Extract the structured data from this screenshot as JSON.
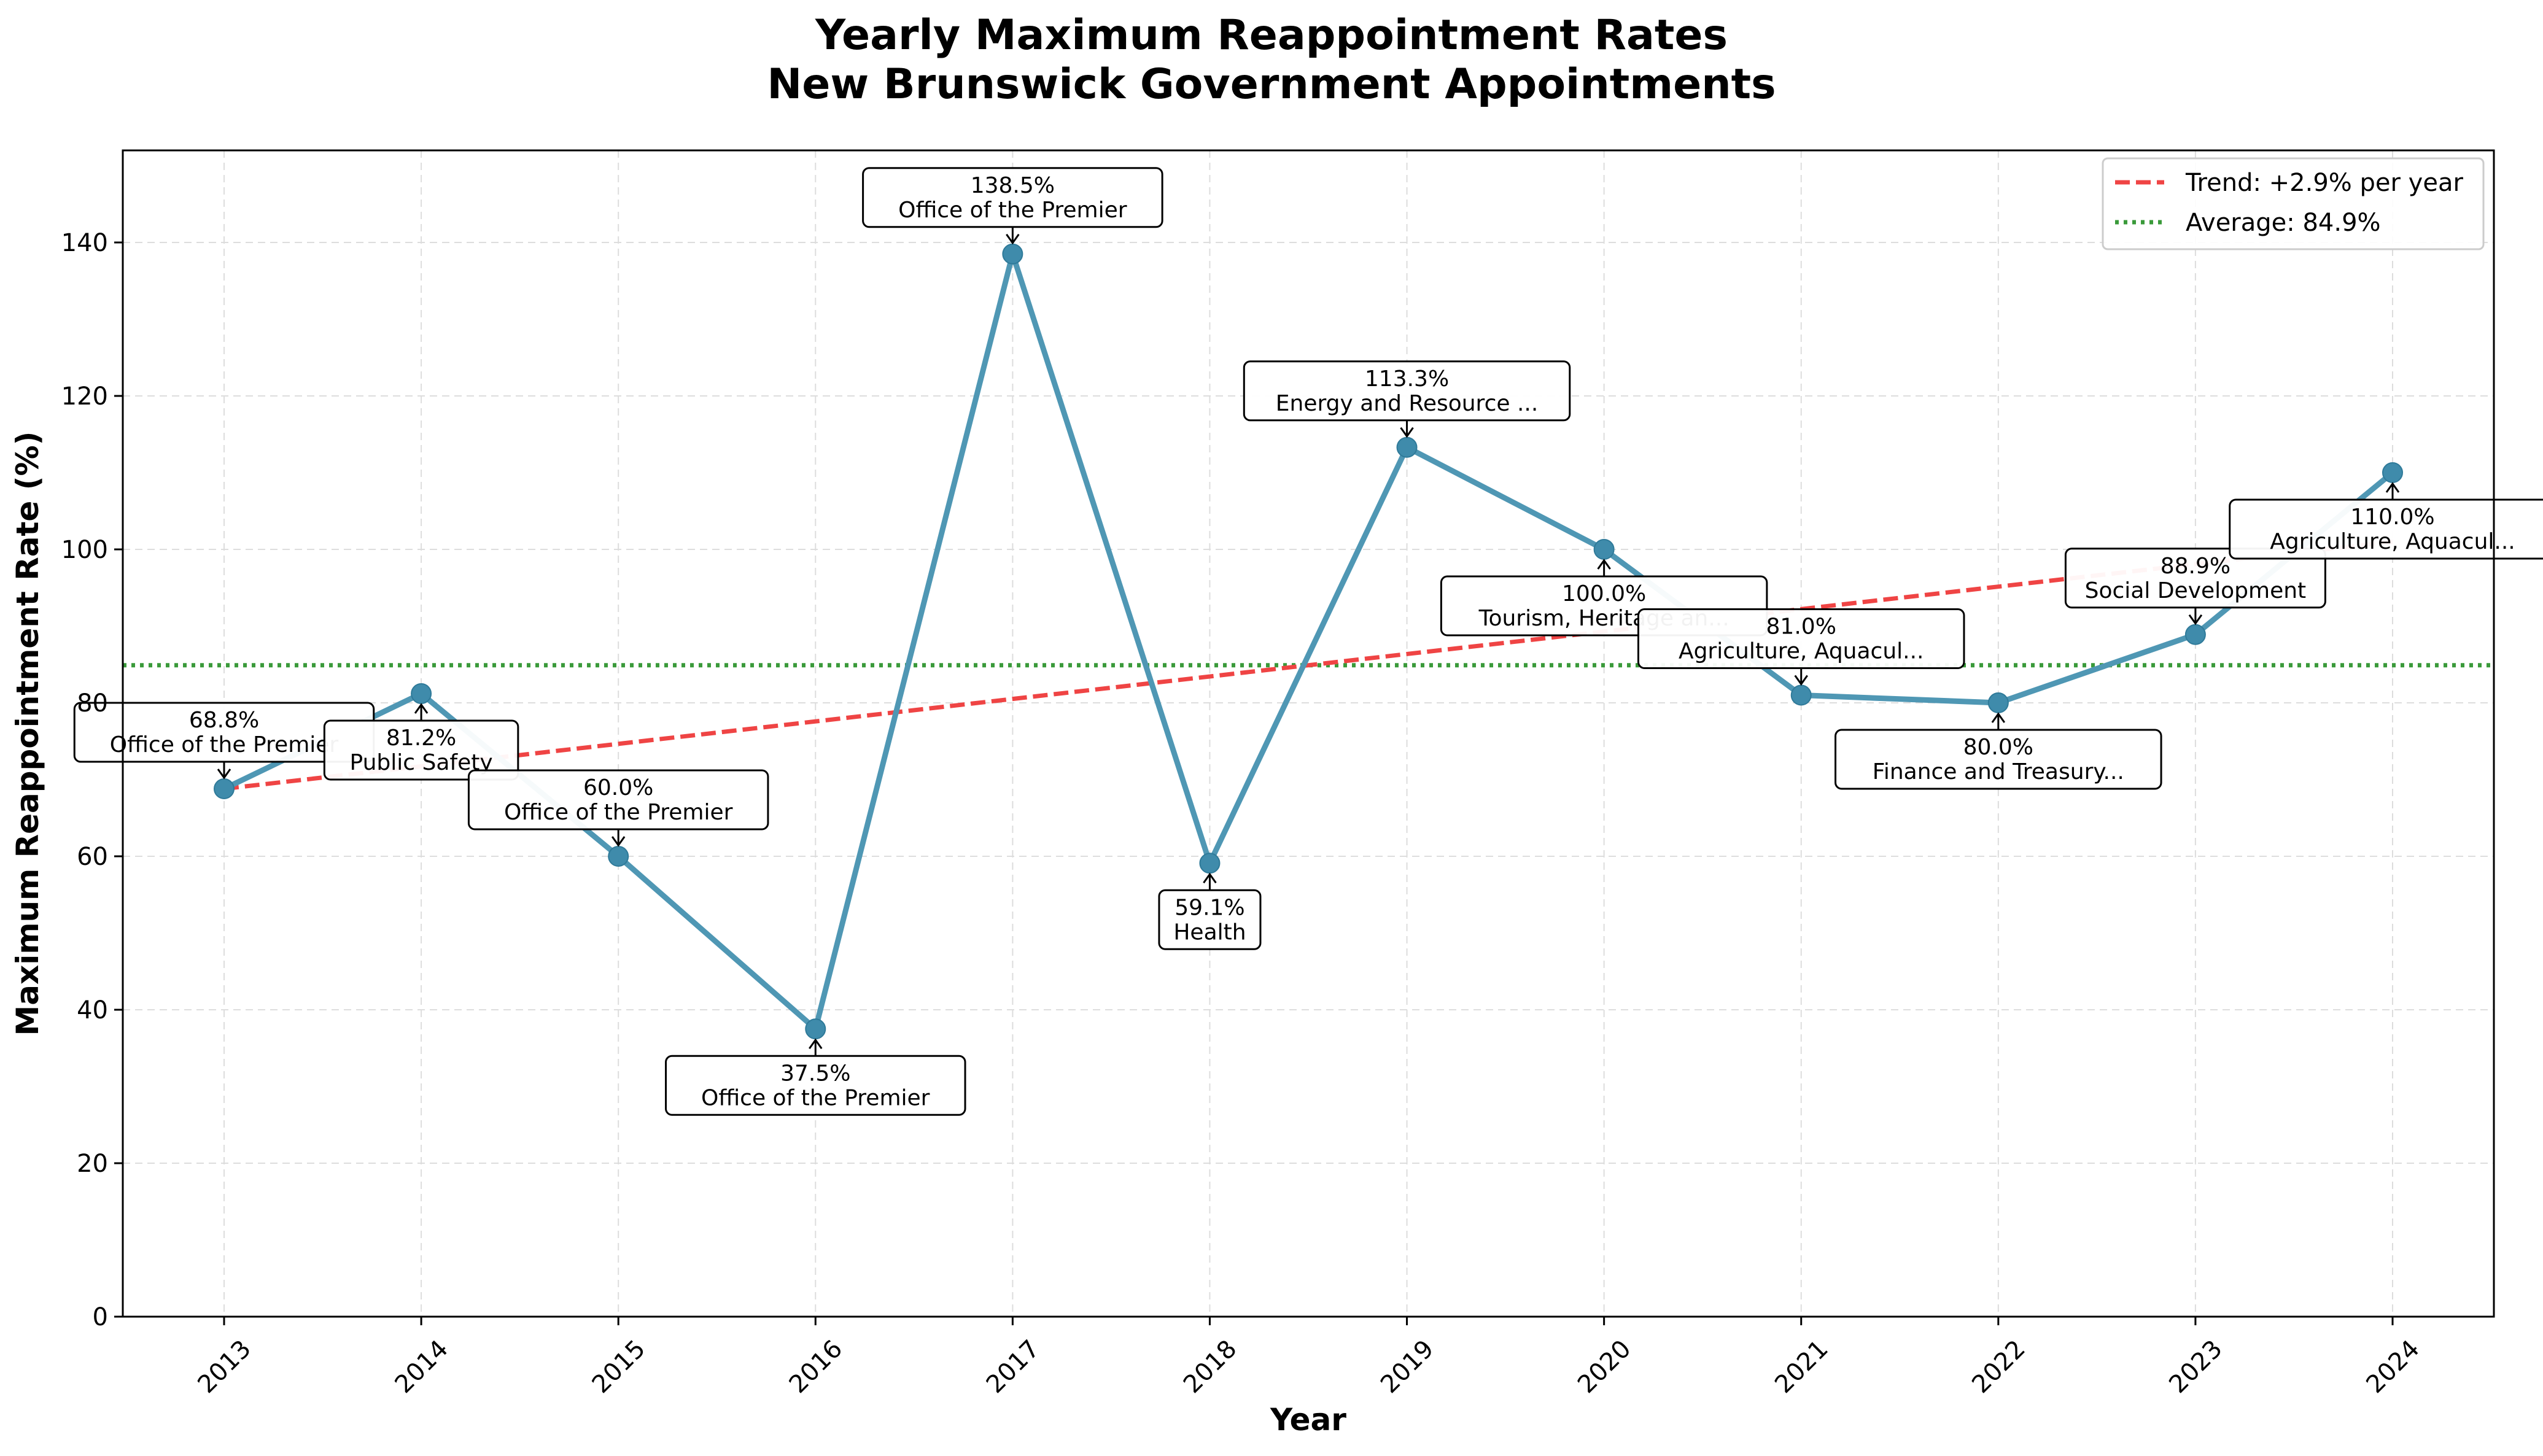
{
  "chart_data": {
    "type": "line",
    "title_lines": [
      "Yearly Maximum Reappointment Rates",
      "New Brunswick Government Appointments"
    ],
    "xlabel": "Year",
    "ylabel": "Maximum Reappointment Rate (%)",
    "ylim": [
      0,
      152
    ],
    "yticks": [
      0,
      20,
      40,
      60,
      80,
      100,
      120,
      140
    ],
    "grid": true,
    "legend_position": "top-right",
    "x": [
      2013,
      2014,
      2015,
      2016,
      2017,
      2018,
      2019,
      2020,
      2021,
      2022,
      2023,
      2024
    ],
    "values": [
      68.8,
      81.2,
      60.0,
      37.5,
      138.5,
      59.1,
      113.3,
      100.0,
      81.0,
      80.0,
      88.9,
      110.0
    ],
    "annotations": [
      {
        "value_text": "68.8%",
        "org": "Office of the Premier",
        "placement": "above"
      },
      {
        "value_text": "81.2%",
        "org": "Public Safety",
        "placement": "below"
      },
      {
        "value_text": "60.0%",
        "org": "Office of the Premier",
        "placement": "above"
      },
      {
        "value_text": "37.5%",
        "org": "Office of the Premier",
        "placement": "below"
      },
      {
        "value_text": "138.5%",
        "org": "Office of the Premier",
        "placement": "above"
      },
      {
        "value_text": "59.1%",
        "org": "Health",
        "placement": "below"
      },
      {
        "value_text": "113.3%",
        "org": "Energy and Resource ...",
        "placement": "above"
      },
      {
        "value_text": "100.0%",
        "org": "Tourism, Heritage an...",
        "placement": "below"
      },
      {
        "value_text": "81.0%",
        "org": "Agriculture, Aquacul...",
        "placement": "above"
      },
      {
        "value_text": "80.0%",
        "org": "Finance and Treasury...",
        "placement": "below"
      },
      {
        "value_text": "88.9%",
        "org": "Social Development",
        "placement": "above"
      },
      {
        "value_text": "110.0%",
        "org": "Agriculture, Aquacul...",
        "placement": "below"
      }
    ],
    "trend": {
      "label": "Trend: +2.9% per year",
      "start": 68.8,
      "end": 101.0
    },
    "average": {
      "label": "Average: 84.9%",
      "value": 84.9
    },
    "colors": {
      "line": "#4f97b4",
      "marker": "#3f8bab",
      "trend": "#ef4444",
      "average": "#3a9a3a",
      "grid": "#dddddd"
    }
  }
}
